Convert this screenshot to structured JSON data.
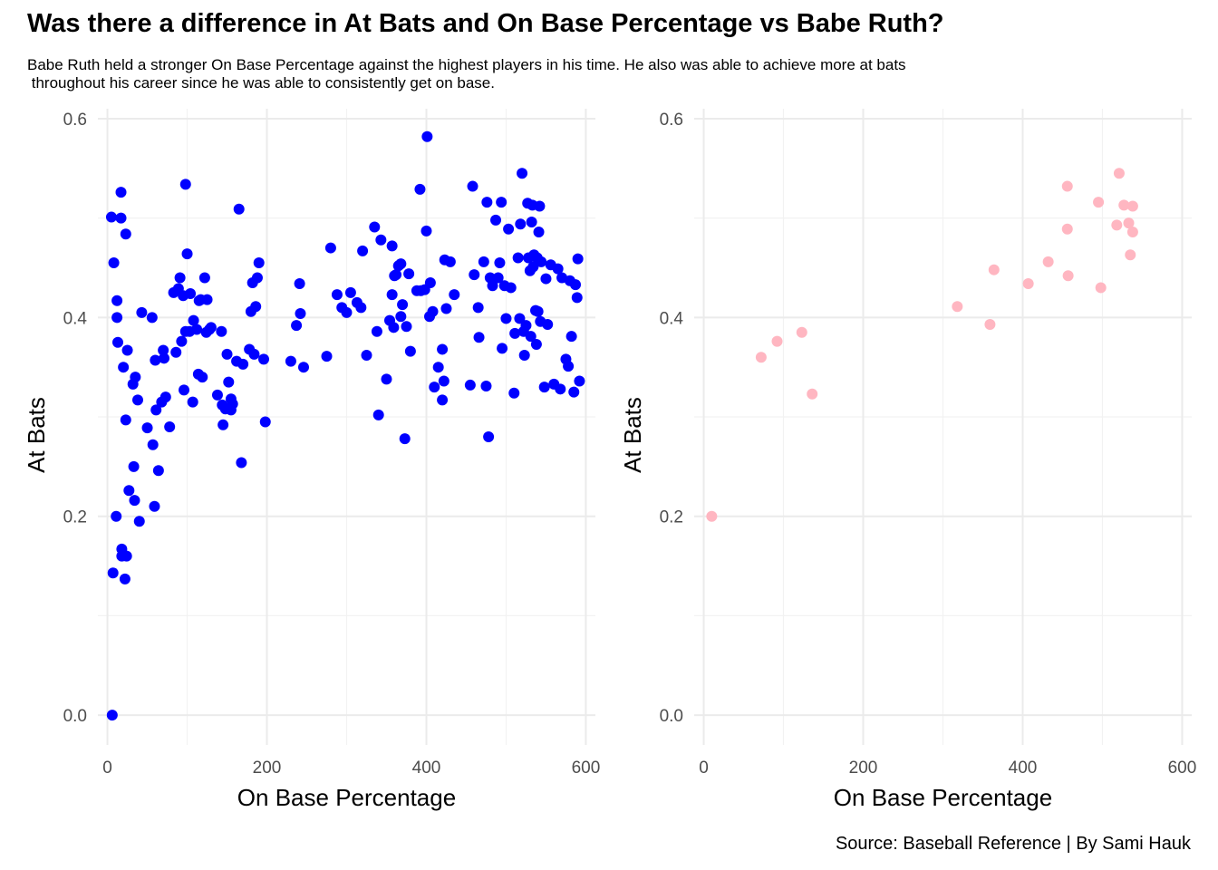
{
  "title": "Was there a difference in At Bats and On Base Percentage vs Babe Ruth?",
  "subtitle": "Babe Ruth held a stronger On Base Percentage against the highest players in his time. He also was able to achieve more at bats\n throughout his career since he was able to consistently get on base.",
  "caption": "Source: Baseball Reference | By Sami Hauk",
  "colors": {
    "left_points": "#0000ff",
    "right_points": "#ffb6c1",
    "grid": "#ebebeb"
  },
  "chart_data": [
    {
      "type": "scatter",
      "xlabel": "On Base Percentage",
      "ylabel": "At Bats",
      "xlim": [
        -12,
        612
      ],
      "ylim": [
        -0.03,
        0.61
      ],
      "x_ticks": [
        0,
        200,
        400,
        600
      ],
      "x_tick_labels": [
        "0",
        "200",
        "400",
        "600"
      ],
      "y_ticks": [
        0.0,
        0.2,
        0.4,
        0.6
      ],
      "y_tick_labels": [
        "0.0",
        "0.2",
        "0.4",
        "0.6"
      ],
      "grid": true,
      "color": "#0000ff",
      "points": [
        [
          6,
          0.0
        ],
        [
          7,
          0.143
        ],
        [
          8,
          0.455
        ],
        [
          5,
          0.501
        ],
        [
          11,
          0.2
        ],
        [
          12,
          0.417
        ],
        [
          12,
          0.4
        ],
        [
          13,
          0.375
        ],
        [
          17,
          0.5
        ],
        [
          17,
          0.526
        ],
        [
          18,
          0.167
        ],
        [
          18,
          0.16
        ],
        [
          20,
          0.35
        ],
        [
          22,
          0.137
        ],
        [
          23,
          0.484
        ],
        [
          23,
          0.297
        ],
        [
          24,
          0.16
        ],
        [
          25,
          0.367
        ],
        [
          27,
          0.226
        ],
        [
          32,
          0.333
        ],
        [
          33,
          0.25
        ],
        [
          34,
          0.216
        ],
        [
          35,
          0.34
        ],
        [
          38,
          0.317
        ],
        [
          40,
          0.195
        ],
        [
          43,
          0.405
        ],
        [
          50,
          0.289
        ],
        [
          56,
          0.4
        ],
        [
          57,
          0.272
        ],
        [
          59,
          0.21
        ],
        [
          60,
          0.357
        ],
        [
          61,
          0.307
        ],
        [
          64,
          0.246
        ],
        [
          68,
          0.315
        ],
        [
          70,
          0.367
        ],
        [
          71,
          0.359
        ],
        [
          73,
          0.32
        ],
        [
          78,
          0.29
        ],
        [
          83,
          0.425
        ],
        [
          86,
          0.365
        ],
        [
          89,
          0.429
        ],
        [
          91,
          0.44
        ],
        [
          93,
          0.376
        ],
        [
          95,
          0.422
        ],
        [
          96,
          0.327
        ],
        [
          98,
          0.386
        ],
        [
          98,
          0.534
        ],
        [
          100,
          0.464
        ],
        [
          103,
          0.386
        ],
        [
          104,
          0.424
        ],
        [
          107,
          0.315
        ],
        [
          108,
          0.397
        ],
        [
          112,
          0.388
        ],
        [
          114,
          0.343
        ],
        [
          115,
          0.417
        ],
        [
          117,
          0.418
        ],
        [
          119,
          0.34
        ],
        [
          122,
          0.44
        ],
        [
          124,
          0.385
        ],
        [
          125,
          0.418
        ],
        [
          128,
          0.388
        ],
        [
          130,
          0.39
        ],
        [
          138,
          0.322
        ],
        [
          143,
          0.386
        ],
        [
          144,
          0.312
        ],
        [
          145,
          0.292
        ],
        [
          148,
          0.308
        ],
        [
          150,
          0.363
        ],
        [
          152,
          0.335
        ],
        [
          155,
          0.318
        ],
        [
          155,
          0.307
        ],
        [
          157,
          0.313
        ],
        [
          162,
          0.356
        ],
        [
          165,
          0.509
        ],
        [
          168,
          0.254
        ],
        [
          170,
          0.353
        ],
        [
          178,
          0.368
        ],
        [
          180,
          0.406
        ],
        [
          182,
          0.435
        ],
        [
          184,
          0.363
        ],
        [
          186,
          0.411
        ],
        [
          188,
          0.44
        ],
        [
          190,
          0.455
        ],
        [
          196,
          0.358
        ],
        [
          198,
          0.295
        ],
        [
          230,
          0.356
        ],
        [
          237,
          0.392
        ],
        [
          241,
          0.434
        ],
        [
          242,
          0.404
        ],
        [
          246,
          0.35
        ],
        [
          275,
          0.361
        ],
        [
          280,
          0.47
        ],
        [
          288,
          0.423
        ],
        [
          294,
          0.41
        ],
        [
          300,
          0.405
        ],
        [
          305,
          0.425
        ],
        [
          313,
          0.415
        ],
        [
          318,
          0.41
        ],
        [
          320,
          0.467
        ],
        [
          325,
          0.362
        ],
        [
          335,
          0.491
        ],
        [
          338,
          0.386
        ],
        [
          340,
          0.302
        ],
        [
          343,
          0.478
        ],
        [
          350,
          0.338
        ],
        [
          354,
          0.397
        ],
        [
          357,
          0.472
        ],
        [
          357,
          0.423
        ],
        [
          359,
          0.39
        ],
        [
          360,
          0.442
        ],
        [
          362,
          0.443
        ],
        [
          365,
          0.452
        ],
        [
          368,
          0.454
        ],
        [
          368,
          0.401
        ],
        [
          370,
          0.413
        ],
        [
          373,
          0.278
        ],
        [
          375,
          0.391
        ],
        [
          378,
          0.444
        ],
        [
          380,
          0.366
        ],
        [
          388,
          0.427
        ],
        [
          392,
          0.529
        ],
        [
          393,
          0.427
        ],
        [
          398,
          0.428
        ],
        [
          400,
          0.487
        ],
        [
          401,
          0.582
        ],
        [
          404,
          0.401
        ],
        [
          405,
          0.435
        ],
        [
          408,
          0.406
        ],
        [
          410,
          0.33
        ],
        [
          415,
          0.35
        ],
        [
          420,
          0.368
        ],
        [
          420,
          0.317
        ],
        [
          422,
          0.336
        ],
        [
          423,
          0.458
        ],
        [
          425,
          0.409
        ],
        [
          430,
          0.456
        ],
        [
          435,
          0.423
        ],
        [
          455,
          0.332
        ],
        [
          458,
          0.532
        ],
        [
          460,
          0.443
        ],
        [
          465,
          0.41
        ],
        [
          466,
          0.38
        ],
        [
          472,
          0.456
        ],
        [
          475,
          0.331
        ],
        [
          476,
          0.516
        ],
        [
          478,
          0.28
        ],
        [
          480,
          0.44
        ],
        [
          483,
          0.432
        ],
        [
          487,
          0.498
        ],
        [
          490,
          0.44
        ],
        [
          492,
          0.455
        ],
        [
          494,
          0.516
        ],
        [
          495,
          0.369
        ],
        [
          498,
          0.432
        ],
        [
          500,
          0.399
        ],
        [
          503,
          0.489
        ],
        [
          506,
          0.43
        ],
        [
          510,
          0.324
        ],
        [
          511,
          0.384
        ],
        [
          515,
          0.46
        ],
        [
          517,
          0.399
        ],
        [
          518,
          0.494
        ],
        [
          520,
          0.545
        ],
        [
          522,
          0.386
        ],
        [
          523,
          0.362
        ],
        [
          525,
          0.392
        ],
        [
          527,
          0.515
        ],
        [
          528,
          0.46
        ],
        [
          530,
          0.447
        ],
        [
          531,
          0.381
        ],
        [
          532,
          0.496
        ],
        [
          533,
          0.513
        ],
        [
          534,
          0.451
        ],
        [
          535,
          0.463
        ],
        [
          537,
          0.407
        ],
        [
          538,
          0.373
        ],
        [
          539,
          0.46
        ],
        [
          540,
          0.406
        ],
        [
          541,
          0.486
        ],
        [
          542,
          0.512
        ],
        [
          543,
          0.396
        ],
        [
          544,
          0.456
        ],
        [
          548,
          0.33
        ],
        [
          550,
          0.439
        ],
        [
          552,
          0.393
        ],
        [
          556,
          0.453
        ],
        [
          560,
          0.333
        ],
        [
          565,
          0.449
        ],
        [
          568,
          0.328
        ],
        [
          570,
          0.44
        ],
        [
          575,
          0.358
        ],
        [
          578,
          0.351
        ],
        [
          580,
          0.437
        ],
        [
          582,
          0.381
        ],
        [
          585,
          0.325
        ],
        [
          587,
          0.433
        ],
        [
          589,
          0.42
        ],
        [
          590,
          0.459
        ],
        [
          592,
          0.336
        ]
      ]
    },
    {
      "type": "scatter",
      "xlabel": "On Base Percentage",
      "ylabel": "At Bats",
      "xlim": [
        -12,
        612
      ],
      "ylim": [
        -0.03,
        0.61
      ],
      "x_ticks": [
        0,
        200,
        400,
        600
      ],
      "x_tick_labels": [
        "0",
        "200",
        "400",
        "600"
      ],
      "y_ticks": [
        0.0,
        0.2,
        0.4,
        0.6
      ],
      "y_tick_labels": [
        "0.0",
        "0.2",
        "0.4",
        "0.6"
      ],
      "grid": true,
      "color": "#ffb6c1",
      "points": [
        [
          10,
          0.2
        ],
        [
          72,
          0.36
        ],
        [
          92,
          0.376
        ],
        [
          123,
          0.385
        ],
        [
          136,
          0.323
        ],
        [
          318,
          0.411
        ],
        [
          359,
          0.393
        ],
        [
          364,
          0.448
        ],
        [
          407,
          0.434
        ],
        [
          432,
          0.456
        ],
        [
          456,
          0.532
        ],
        [
          456,
          0.489
        ],
        [
          457,
          0.442
        ],
        [
          495,
          0.516
        ],
        [
          498,
          0.43
        ],
        [
          518,
          0.493
        ],
        [
          521,
          0.545
        ],
        [
          527,
          0.513
        ],
        [
          533,
          0.495
        ],
        [
          535,
          0.463
        ],
        [
          538,
          0.486
        ],
        [
          538,
          0.512
        ]
      ]
    }
  ]
}
